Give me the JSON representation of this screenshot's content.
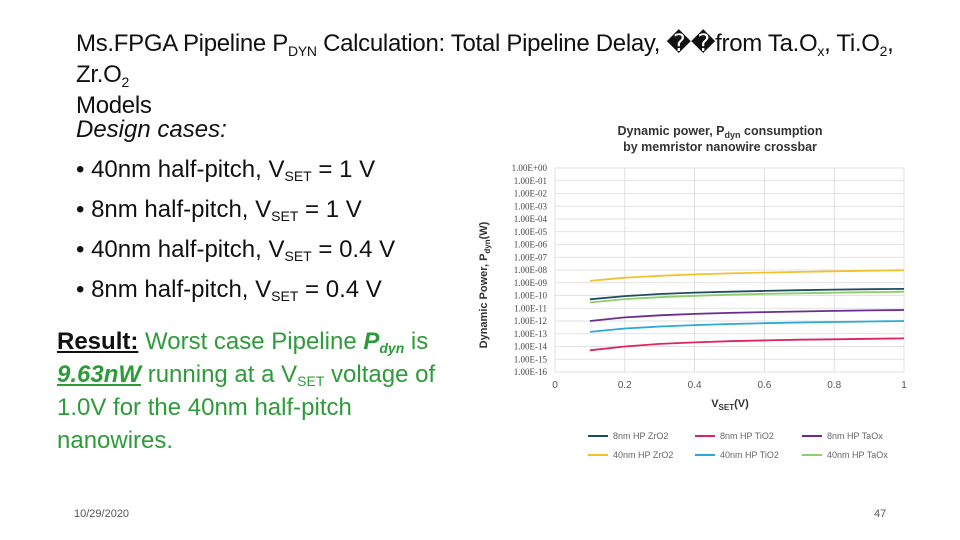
{
  "slide": {
    "title_part1": "Ms.FPGA Pipeline P",
    "title_sub": "DYN",
    "title_part2": " Calculation: Total Pipeline Delay, ��from Ta.O",
    "title_sub2": "x",
    "title_part3": ", Ti.O",
    "title_sub3": "2",
    "title_part4": ", Zr.O",
    "title_sub4": "2",
    "title_line2": "Models",
    "design_cases_heading": "Design cases:",
    "cases": [
      {
        "prefix": "• 40nm half-pitch, V",
        "sub": "SET",
        "suffix": " = 1 V"
      },
      {
        "prefix": "• 8nm half-pitch, V",
        "sub": "SET",
        "suffix": " = 1 V"
      },
      {
        "prefix": "• 40nm half-pitch, V",
        "sub": "SET",
        "suffix": " = 0.4 V"
      },
      {
        "prefix": "• 8nm half-pitch, V",
        "sub": "SET",
        "suffix": " = 0.4 V"
      }
    ],
    "result": {
      "label": "Result:",
      "text1": " Worst case Pipeline ",
      "pdyn_main": "P",
      "pdyn_sub": "dyn",
      "text2": " is",
      "value": "9.63nW",
      "text3": " running at a V",
      "vset_sub": "SET",
      "text4": " voltage of 1.0V for the 40nm half-pitch nanowires."
    },
    "date": "10/29/2020",
    "page_number": "47"
  },
  "chart_data": {
    "type": "line",
    "title_line1": "Dynamic power, P",
    "title_sub": "dyn",
    "title_line1_end": " consumption",
    "title_line2": "by memristor nanowire crossbar",
    "ylabel_main": "Dynamic Power, P",
    "ylabel_sub": "dyn",
    "ylabel_end": "(W)",
    "xlabel_main": "V",
    "xlabel_sub": "SET",
    "xlabel_end": "(V)",
    "y_scale": "log",
    "ylim": [
      1e-16,
      1
    ],
    "xlim": [
      0,
      1
    ],
    "y_ticks": [
      "1.00E+00",
      "1.00E-01",
      "1.00E-02",
      "1.00E-03",
      "1.00E-04",
      "1.00E-05",
      "1.00E-06",
      "1.00E-07",
      "1.00E-08",
      "1.00E-09",
      "1.00E-10",
      "1.00E-11",
      "1.00E-12",
      "1.00E-13",
      "1.00E-14",
      "1.00E-15",
      "1.00E-16"
    ],
    "x_ticks": [
      "0",
      "0.2",
      "0.4",
      "0.6",
      "0.8",
      "1"
    ],
    "x": [
      0.1,
      0.2,
      0.3,
      0.4,
      0.5,
      0.6,
      0.7,
      0.8,
      0.9,
      1.0
    ],
    "grid": true,
    "legend_position": "bottom",
    "series": [
      {
        "name": "8nm HP ZrO2",
        "color": "#1f4e5f",
        "values": [
          5e-11,
          9e-11,
          1.3e-10,
          1.7e-10,
          2e-10,
          2.3e-10,
          2.6e-10,
          2.9e-10,
          3.1e-10,
          3.3e-10
        ]
      },
      {
        "name": "8nm HP TiO2",
        "color": "#e0245e",
        "values": [
          5e-15,
          1e-14,
          1.6e-14,
          2.1e-14,
          2.6e-14,
          3e-14,
          3.4e-14,
          3.7e-14,
          4e-14,
          4.3e-14
        ]
      },
      {
        "name": "8nm HP TaOx",
        "color": "#6a2c91",
        "values": [
          1e-12,
          1.9e-12,
          2.8e-12,
          3.6e-12,
          4.3e-12,
          5e-12,
          5.6e-12,
          6.2e-12,
          6.8e-12,
          7.3e-12
        ]
      },
      {
        "name": "40nm HP ZrO2",
        "color": "#f2c12e",
        "values": [
          1.4e-09,
          2.5e-09,
          3.5e-09,
          4.5e-09,
          5.4e-09,
          6.3e-09,
          7.1e-09,
          7.9e-09,
          8.8e-09,
          9.63e-09
        ]
      },
      {
        "name": "40nm HP TiO2",
        "color": "#2aa9d8",
        "values": [
          1.4e-13,
          2.6e-13,
          3.7e-13,
          4.8e-13,
          5.8e-13,
          6.7e-13,
          7.6e-13,
          8.4e-13,
          9.2e-13,
          1e-12
        ]
      },
      {
        "name": "40nm HP TaOx",
        "color": "#8fce6a",
        "values": [
          2.8e-11,
          5.2e-11,
          7.4e-11,
          9.5e-11,
          1.15e-10,
          1.33e-10,
          1.5e-10,
          1.67e-10,
          1.83e-10,
          2e-10
        ]
      }
    ]
  }
}
